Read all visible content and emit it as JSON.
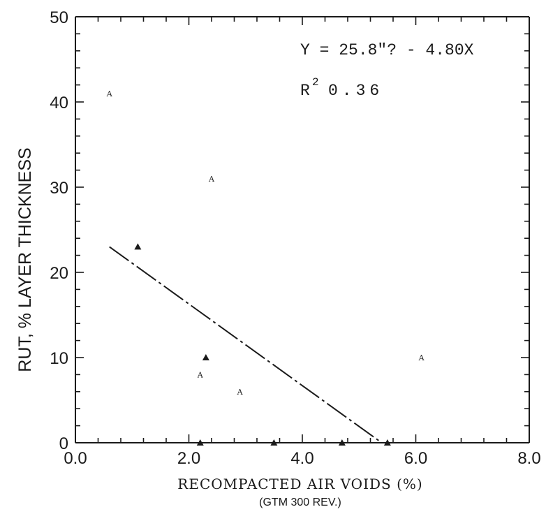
{
  "chart_data": {
    "type": "scatter",
    "xlabel": "RECOMPACTED AIR VOIDS (%)",
    "xlabel_sub": "(GTM 300 REV.)",
    "ylabel": "RUT, % LAYER THICKNESS",
    "xlim": [
      0,
      8
    ],
    "ylim": [
      0,
      50
    ],
    "x_ticks": [
      0,
      2,
      4,
      6,
      8
    ],
    "x_tick_labels": [
      "0.0",
      "2.0",
      "4.0",
      "6.0",
      "8.0"
    ],
    "y_ticks": [
      0,
      10,
      20,
      30,
      40,
      50
    ],
    "y_tick_labels": [
      "0",
      "10",
      "20",
      "30",
      "40",
      "50"
    ],
    "grid": false,
    "legend": "none",
    "annotations": {
      "equation": "Y = 25.8\"? - 4.80X",
      "r2_prefix": "R",
      "r2_exp": "2",
      "r2_value": "0.36"
    },
    "points": [
      {
        "x": 0.6,
        "y": 41,
        "marker": "A"
      },
      {
        "x": 2.4,
        "y": 31,
        "marker": "A"
      },
      {
        "x": 1.1,
        "y": 23,
        "marker": "▲"
      },
      {
        "x": 2.3,
        "y": 10,
        "marker": "▲"
      },
      {
        "x": 2.2,
        "y": 8,
        "marker": "A"
      },
      {
        "x": 2.9,
        "y": 6,
        "marker": "A"
      },
      {
        "x": 6.1,
        "y": 10,
        "marker": "A"
      },
      {
        "x": 2.2,
        "y": 0,
        "marker": "▲"
      },
      {
        "x": 3.5,
        "y": 0,
        "marker": "▲"
      },
      {
        "x": 4.7,
        "y": 0,
        "marker": "▲"
      },
      {
        "x": 5.5,
        "y": 0,
        "marker": "▲"
      }
    ],
    "regression": {
      "x1": 0.6,
      "y1": 23,
      "x2": 5.4,
      "y2": 0,
      "style": "long-dash"
    }
  }
}
